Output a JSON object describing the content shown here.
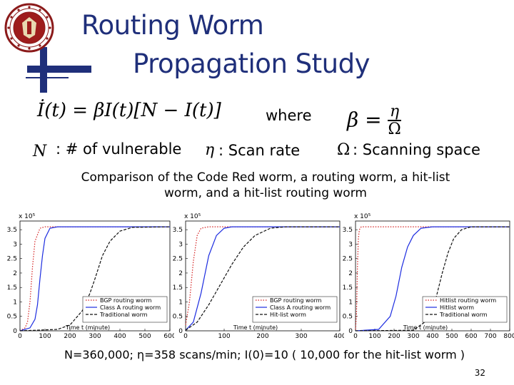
{
  "slide": {
    "title_line1": "Routing Worm",
    "title_line2": "Propagation Study",
    "where": "where",
    "definitions": [
      {
        "symbol": "N",
        "text": ": # of vulnerable"
      },
      {
        "symbol": "η",
        "text": ": Scan rate"
      },
      {
        "symbol": "Ω",
        "text": ": Scanning space"
      }
    ],
    "caption": "Comparison of the Code Red worm, a routing worm, a hit-list worm, and a hit-list routing worm",
    "footer": "N=360,000;  η=358 scans/min; I(0)=10 ( 10,000 for the hit-list worm )",
    "page_number": "32",
    "colors": {
      "title": "#1f2f7a",
      "red": "#d42020",
      "blue": "#1d2de0",
      "black": "#111111"
    }
  },
  "equation": {
    "lhs": "İ(t)",
    "rhs": "= βI(t)[N − I(t)]",
    "beta_lhs": "β =",
    "beta_num": "η",
    "beta_den": "Ω"
  },
  "chart_data": [
    {
      "type": "line",
      "xlabel": "Time t (minute)",
      "exponent_label": "x 10⁵",
      "xlim": [
        0,
        600
      ],
      "ylim": [
        0,
        3.8
      ],
      "xticks": [
        0,
        100,
        200,
        300,
        400,
        500,
        600
      ],
      "yticks": [
        0,
        0.5,
        1,
        1.5,
        2,
        2.5,
        3,
        3.5
      ],
      "legend_position": "bottom-right",
      "series": [
        {
          "name": "BGP routing worm",
          "style": "red-dotted",
          "x": [
            0,
            20,
            30,
            40,
            50,
            60,
            80,
            100,
            600
          ],
          "y": [
            0,
            0.1,
            0.3,
            1.0,
            2.2,
            3.1,
            3.55,
            3.6,
            3.6
          ]
        },
        {
          "name": "Class A routing worm",
          "style": "blue-solid",
          "x": [
            0,
            40,
            60,
            70,
            80,
            90,
            100,
            120,
            150,
            600
          ],
          "y": [
            0,
            0.1,
            0.4,
            0.9,
            1.8,
            2.6,
            3.2,
            3.55,
            3.6,
            3.6
          ]
        },
        {
          "name": "Traditional worm",
          "style": "black-dashed",
          "x": [
            0,
            150,
            200,
            250,
            280,
            300,
            330,
            360,
            400,
            450,
            600
          ],
          "y": [
            0,
            0.05,
            0.2,
            0.7,
            1.3,
            1.8,
            2.6,
            3.1,
            3.45,
            3.58,
            3.6
          ]
        }
      ]
    },
    {
      "type": "line",
      "xlabel": "Time t (minute)",
      "exponent_label": "x 10⁵",
      "xlim": [
        0,
        400
      ],
      "ylim": [
        0,
        3.8
      ],
      "xticks": [
        0,
        100,
        200,
        300,
        400
      ],
      "yticks": [
        0,
        0.5,
        1,
        1.5,
        2,
        2.5,
        3,
        3.5
      ],
      "legend_position": "bottom-right",
      "series": [
        {
          "name": "BGP routing worm",
          "style": "red-dotted",
          "x": [
            0,
            10,
            20,
            30,
            40,
            60,
            400
          ],
          "y": [
            0.2,
            1.0,
            2.4,
            3.3,
            3.55,
            3.6,
            3.6
          ]
        },
        {
          "name": "Class A routing worm",
          "style": "blue-solid",
          "x": [
            0,
            20,
            40,
            60,
            80,
            100,
            120,
            150,
            400
          ],
          "y": [
            0.02,
            0.3,
            1.3,
            2.6,
            3.3,
            3.55,
            3.6,
            3.6,
            3.6
          ]
        },
        {
          "name": "Hit-list worm",
          "style": "black-dashed",
          "x": [
            0,
            30,
            60,
            90,
            120,
            150,
            180,
            220,
            260,
            400
          ],
          "y": [
            0.02,
            0.3,
            0.9,
            1.6,
            2.3,
            2.9,
            3.3,
            3.55,
            3.6,
            3.6
          ]
        }
      ]
    },
    {
      "type": "line",
      "xlabel": "Time t (minute)",
      "exponent_label": "x 10⁵",
      "xlim": [
        0,
        800
      ],
      "ylim": [
        0,
        3.8
      ],
      "xticks": [
        0,
        100,
        200,
        300,
        400,
        500,
        600,
        700,
        800
      ],
      "yticks": [
        0,
        0.5,
        1,
        1.5,
        2,
        2.5,
        3,
        3.5
      ],
      "legend_position": "bottom-right",
      "series": [
        {
          "name": "Hitlist routing worm",
          "style": "red-dotted",
          "x": [
            0,
            5,
            10,
            15,
            20,
            30,
            800
          ],
          "y": [
            0.05,
            0.6,
            2.2,
            3.2,
            3.5,
            3.6,
            3.6
          ]
        },
        {
          "name": "Hitlist worm",
          "style": "blue-solid",
          "x": [
            0,
            120,
            180,
            210,
            240,
            270,
            300,
            340,
            400,
            800
          ],
          "y": [
            0,
            0.05,
            0.5,
            1.2,
            2.2,
            2.9,
            3.3,
            3.55,
            3.6,
            3.6
          ]
        },
        {
          "name": "Traditional worm",
          "style": "black-dashed",
          "x": [
            0,
            300,
            380,
            420,
            450,
            480,
            510,
            550,
            600,
            800
          ],
          "y": [
            0,
            0.02,
            0.4,
            1.2,
            2.0,
            2.7,
            3.2,
            3.5,
            3.6,
            3.6
          ]
        }
      ]
    }
  ]
}
